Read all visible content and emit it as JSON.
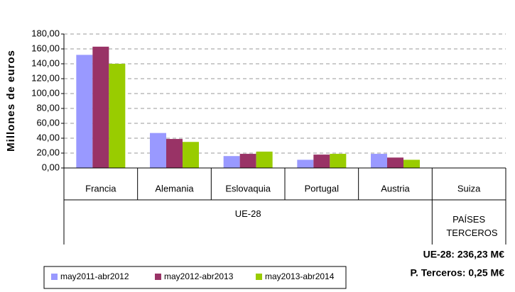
{
  "chart_data": {
    "type": "bar",
    "y_label": "Millones de euros",
    "categories": [
      "Francia",
      "Alemania",
      "Eslovaquia",
      "Portugal",
      "Austria",
      "Suiza"
    ],
    "groups": [
      {
        "label": "UE-28",
        "count": 5
      },
      {
        "label": "PAÍSES TERCEROS",
        "count": 1
      }
    ],
    "series": [
      {
        "name": "may2011-abr2012",
        "color": "#9999ff",
        "values": [
          152,
          47,
          16,
          11,
          19,
          0
        ]
      },
      {
        "name": "may2012-abr2013",
        "color": "#993366",
        "values": [
          163,
          39,
          19,
          18,
          14,
          0
        ]
      },
      {
        "name": "may2013-abr2014",
        "color": "#99cc00",
        "values": [
          140,
          35,
          22,
          19,
          11,
          0
        ]
      }
    ],
    "ylim": [
      0,
      180
    ],
    "yticks": [
      {
        "value": 0,
        "label": "0,00"
      },
      {
        "value": 20,
        "label": "20,00"
      },
      {
        "value": 40,
        "label": "40,00"
      },
      {
        "value": 60,
        "label": "60,00"
      },
      {
        "value": 80,
        "label": "80,00"
      },
      {
        "value": 100,
        "label": "100,00"
      },
      {
        "value": 120,
        "label": "120,00"
      },
      {
        "value": 140,
        "label": "140,00"
      },
      {
        "value": 160,
        "label": "160,00"
      },
      {
        "value": 180,
        "label": "180,00"
      }
    ],
    "grid": true,
    "legend": "bottom-left",
    "annotations": [
      "UE-28: 236,23 M€",
      "P. Terceros: 0,25 M€"
    ]
  }
}
